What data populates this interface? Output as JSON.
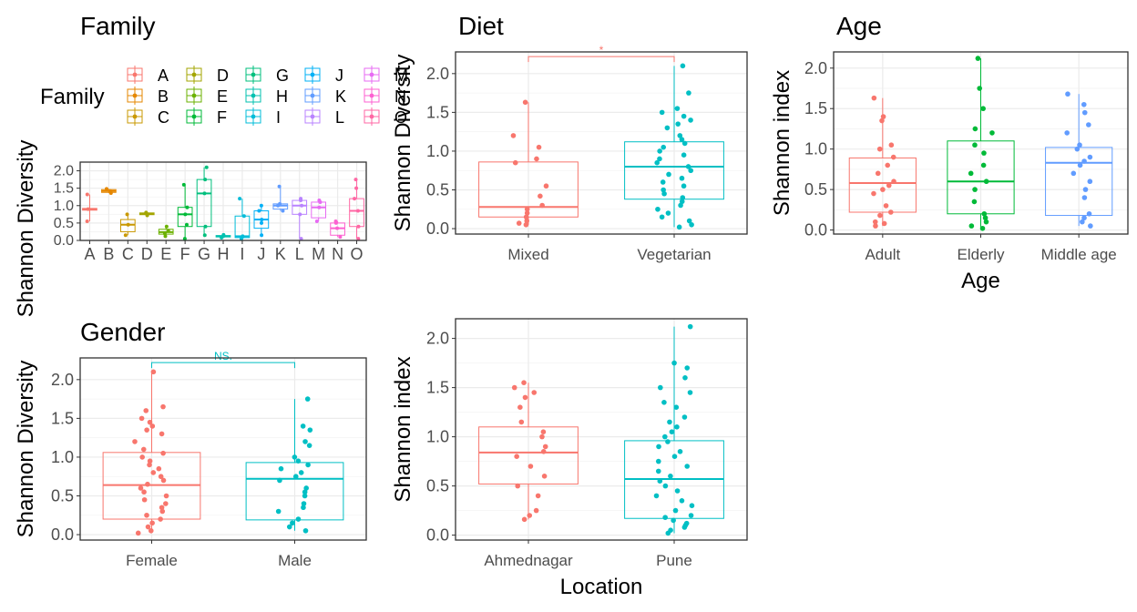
{
  "colors": {
    "A": "#F8766D",
    "B": "#E58700",
    "C": "#C99800",
    "D": "#A3A500",
    "E": "#6BB100",
    "F": "#00BA38",
    "G": "#00BF7D",
    "H": "#00C0AF",
    "I": "#00BCD8",
    "J": "#00B0F6",
    "K": "#619CFF",
    "L": "#B983FF",
    "M": "#E76BF3",
    "N": "#FD61D1",
    "O": "#FF67A4",
    "two_1": "#F8766D",
    "two_2": "#00BFC4",
    "three_1": "#F8766D",
    "three_2": "#00BA38",
    "three_3": "#619CFF"
  },
  "chart_data": [
    {
      "id": "family",
      "type": "boxplot",
      "title": "Family",
      "xlabel": "",
      "ylabel": "Shannon Diversity",
      "ylim": [
        0,
        2.25
      ],
      "yticks": [
        "0.0",
        "0.5",
        "1.0",
        "1.5",
        "2.0"
      ],
      "legend": {
        "title": "Family",
        "position": "top",
        "entries": [
          "A",
          "B",
          "C",
          "D",
          "E",
          "F",
          "G",
          "H",
          "I",
          "J",
          "K",
          "L",
          "M",
          "N",
          "O"
        ]
      },
      "categories": [
        "A",
        "B",
        "C",
        "D",
        "E",
        "F",
        "G",
        "H",
        "I",
        "J",
        "K",
        "L",
        "M",
        "N",
        "O"
      ],
      "boxes": [
        {
          "q1": 0.87,
          "median": 0.9,
          "q3": 0.92,
          "min": 0.55,
          "max": 1.32
        },
        {
          "q1": 1.38,
          "median": 1.42,
          "q3": 1.46,
          "min": 1.36,
          "max": 1.48
        },
        {
          "q1": 0.25,
          "median": 0.45,
          "q3": 0.6,
          "min": 0.15,
          "max": 0.75
        },
        {
          "q1": 0.74,
          "median": 0.77,
          "q3": 0.79,
          "min": 0.72,
          "max": 0.8
        },
        {
          "q1": 0.18,
          "median": 0.24,
          "q3": 0.32,
          "min": 0.12,
          "max": 0.4
        },
        {
          "q1": 0.4,
          "median": 0.75,
          "q3": 0.95,
          "min": 0.05,
          "max": 1.6
        },
        {
          "q1": 0.4,
          "median": 1.35,
          "q3": 1.75,
          "min": 0.15,
          "max": 2.1
        },
        {
          "q1": 0.1,
          "median": 0.12,
          "q3": 0.14,
          "min": 0.08,
          "max": 0.16
        },
        {
          "q1": 0.08,
          "median": 0.12,
          "q3": 0.7,
          "min": 0.05,
          "max": 1.2
        },
        {
          "q1": 0.35,
          "median": 0.6,
          "q3": 0.85,
          "min": 0.15,
          "max": 1.0
        },
        {
          "q1": 0.9,
          "median": 1.0,
          "q3": 1.05,
          "min": 0.85,
          "max": 1.55
        },
        {
          "q1": 0.75,
          "median": 1.0,
          "q3": 1.15,
          "min": 0.05,
          "max": 1.2
        },
        {
          "q1": 0.65,
          "median": 0.95,
          "q3": 1.1,
          "min": 0.55,
          "max": 1.15
        },
        {
          "q1": 0.15,
          "median": 0.35,
          "q3": 0.5,
          "min": 0.1,
          "max": 0.55
        },
        {
          "q1": 0.4,
          "median": 0.85,
          "q3": 1.2,
          "min": 0.05,
          "max": 1.75
        }
      ],
      "points": [
        [
          0.55,
          0.9,
          1.32
        ],
        [
          1.36,
          1.42,
          1.48
        ],
        [
          0.15,
          0.45,
          0.75
        ],
        [
          0.72,
          0.77,
          0.8
        ],
        [
          0.12,
          0.2,
          0.28,
          0.4
        ],
        [
          0.05,
          0.45,
          0.75,
          0.95,
          1.6
        ],
        [
          0.15,
          0.4,
          1.35,
          1.75,
          2.1
        ],
        [
          0.08,
          0.12,
          0.16
        ],
        [
          0.05,
          0.1,
          0.12,
          0.7,
          1.2
        ],
        [
          0.15,
          0.5,
          0.6,
          0.85,
          1.0
        ],
        [
          0.85,
          1.0,
          1.05,
          1.55
        ],
        [
          0.05,
          0.75,
          1.0,
          1.15,
          1.2
        ],
        [
          0.55,
          0.95,
          1.1,
          1.15
        ],
        [
          0.1,
          0.35,
          0.5,
          0.55
        ],
        [
          0.05,
          0.4,
          0.85,
          1.2,
          1.5,
          1.75
        ]
      ]
    },
    {
      "id": "diet",
      "type": "boxplot",
      "title": "Diet",
      "xlabel": "",
      "ylabel": "Shannon Diversity",
      "ylim": [
        -0.07,
        2.28
      ],
      "yticks": [
        "0.0",
        "0.5",
        "1.0",
        "1.5",
        "2.0"
      ],
      "categories": [
        "Mixed",
        "Vegetarian"
      ],
      "significance": {
        "label": "*",
        "y": 2.22
      },
      "boxes": [
        {
          "q1": 0.15,
          "median": 0.28,
          "q3": 0.86,
          "min": 0.05,
          "max": 1.63
        },
        {
          "q1": 0.38,
          "median": 0.8,
          "q3": 1.12,
          "min": 0.02,
          "max": 2.1
        }
      ],
      "points": [
        [
          0.05,
          0.07,
          0.1,
          0.15,
          0.2,
          0.25,
          0.3,
          0.42,
          0.55,
          0.85,
          0.9,
          1.05,
          1.2,
          1.63
        ],
        [
          0.02,
          0.05,
          0.1,
          0.15,
          0.2,
          0.25,
          0.3,
          0.35,
          0.4,
          0.45,
          0.5,
          0.55,
          0.6,
          0.65,
          0.7,
          0.75,
          0.8,
          0.85,
          0.9,
          0.95,
          1.0,
          1.05,
          1.1,
          1.15,
          1.2,
          1.3,
          1.35,
          1.4,
          1.45,
          1.5,
          1.55,
          1.75,
          2.1
        ]
      ]
    },
    {
      "id": "age",
      "type": "boxplot",
      "title": "Age",
      "xlabel": "Age",
      "ylabel": "Shannon index",
      "ylim": [
        -0.05,
        2.2
      ],
      "yticks": [
        "0.0",
        "0.5",
        "1.0",
        "1.5",
        "2.0"
      ],
      "categories": [
        "Adult",
        "Elderly",
        "Middle age"
      ],
      "boxes": [
        {
          "q1": 0.22,
          "median": 0.58,
          "q3": 0.89,
          "min": 0.05,
          "max": 1.63
        },
        {
          "q1": 0.2,
          "median": 0.6,
          "q3": 1.1,
          "min": 0.02,
          "max": 2.12
        },
        {
          "q1": 0.18,
          "median": 0.83,
          "q3": 1.02,
          "min": 0.05,
          "max": 1.68
        }
      ],
      "points": [
        [
          0.05,
          0.08,
          0.1,
          0.18,
          0.22,
          0.3,
          0.45,
          0.5,
          0.55,
          0.6,
          0.7,
          0.8,
          0.9,
          1.0,
          1.05,
          1.35,
          1.4,
          1.63
        ],
        [
          0.02,
          0.05,
          0.1,
          0.15,
          0.2,
          0.35,
          0.5,
          0.6,
          0.7,
          0.8,
          0.95,
          1.05,
          1.2,
          1.25,
          1.5,
          1.75,
          2.12
        ],
        [
          0.05,
          0.1,
          0.15,
          0.2,
          0.4,
          0.5,
          0.6,
          0.7,
          0.8,
          0.85,
          0.9,
          1.0,
          1.05,
          1.2,
          1.3,
          1.45,
          1.55,
          1.68
        ]
      ]
    },
    {
      "id": "gender",
      "type": "boxplot",
      "title": "Gender",
      "xlabel": "",
      "ylabel": "Shannon Diversity",
      "ylim": [
        -0.07,
        2.28
      ],
      "yticks": [
        "0.0",
        "0.5",
        "1.0",
        "1.5",
        "2.0"
      ],
      "categories": [
        "Female",
        "Male"
      ],
      "significance": {
        "label": "NS.",
        "y": 2.22
      },
      "boxes": [
        {
          "q1": 0.2,
          "median": 0.64,
          "q3": 1.06,
          "min": 0.02,
          "max": 2.1
        },
        {
          "q1": 0.19,
          "median": 0.72,
          "q3": 0.93,
          "min": 0.05,
          "max": 1.75
        }
      ],
      "points": [
        [
          0.02,
          0.05,
          0.1,
          0.15,
          0.2,
          0.25,
          0.3,
          0.35,
          0.4,
          0.45,
          0.5,
          0.55,
          0.6,
          0.65,
          0.7,
          0.75,
          0.8,
          0.85,
          0.9,
          0.95,
          1.0,
          1.05,
          1.1,
          1.2,
          1.3,
          1.35,
          1.4,
          1.45,
          1.5,
          1.6,
          1.65,
          2.1
        ],
        [
          0.05,
          0.1,
          0.15,
          0.2,
          0.3,
          0.35,
          0.4,
          0.5,
          0.55,
          0.6,
          0.7,
          0.75,
          0.8,
          0.85,
          0.9,
          0.95,
          1.0,
          1.15,
          1.2,
          1.35,
          1.4,
          1.75
        ]
      ]
    },
    {
      "id": "location",
      "type": "boxplot",
      "title": "",
      "xlabel": "Location",
      "ylabel": "Shannon index",
      "ylim": [
        -0.05,
        2.2
      ],
      "yticks": [
        "0.0",
        "0.5",
        "1.0",
        "1.5",
        "2.0"
      ],
      "categories": [
        "Ahmednagar",
        "Pune"
      ],
      "boxes": [
        {
          "q1": 0.52,
          "median": 0.84,
          "q3": 1.1,
          "min": 0.16,
          "max": 1.55
        },
        {
          "q1": 0.17,
          "median": 0.57,
          "q3": 0.96,
          "min": 0.02,
          "max": 2.12
        }
      ],
      "points": [
        [
          0.16,
          0.2,
          0.25,
          0.4,
          0.5,
          0.6,
          0.7,
          0.8,
          0.85,
          0.9,
          1.0,
          1.05,
          1.15,
          1.3,
          1.4,
          1.45,
          1.5,
          1.55
        ],
        [
          0.02,
          0.05,
          0.08,
          0.1,
          0.12,
          0.15,
          0.18,
          0.2,
          0.25,
          0.3,
          0.35,
          0.4,
          0.45,
          0.5,
          0.55,
          0.6,
          0.65,
          0.7,
          0.75,
          0.8,
          0.85,
          0.9,
          0.95,
          1.0,
          1.05,
          1.1,
          1.15,
          1.2,
          1.3,
          1.35,
          1.45,
          1.5,
          1.6,
          1.7,
          1.75,
          2.12
        ]
      ]
    }
  ]
}
